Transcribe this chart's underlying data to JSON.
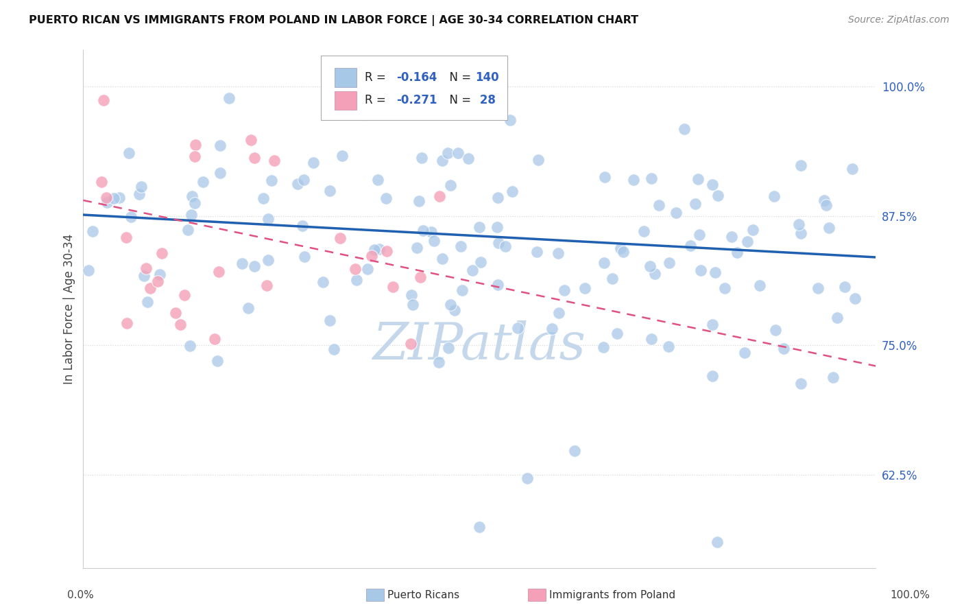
{
  "title": "PUERTO RICAN VS IMMIGRANTS FROM POLAND IN LABOR FORCE | AGE 30-34 CORRELATION CHART",
  "source": "Source: ZipAtlas.com",
  "ylabel": "In Labor Force | Age 30-34",
  "xmin": 0.0,
  "xmax": 1.0,
  "ymin": 0.535,
  "ymax": 1.035,
  "yticks": [
    0.625,
    0.75,
    0.875,
    1.0
  ],
  "ytick_labels": [
    "62.5%",
    "75.0%",
    "87.5%",
    "100.0%"
  ],
  "blue_R": -0.164,
  "blue_N": 140,
  "pink_R": -0.271,
  "pink_N": 28,
  "blue_color": "#a8c8e8",
  "pink_color": "#f4a0b8",
  "blue_line_color": "#2060b0",
  "pink_line_color": "#e05080",
  "tick_color": "#3060c0",
  "legend_label_blue": "Puerto Ricans",
  "legend_label_pink": "Immigrants from Poland",
  "background_color": "#ffffff",
  "watermark_color": "#c5d8eb",
  "grid_color": "#d8d8d8",
  "blue_line_start_y": 0.876,
  "blue_line_end_y": 0.835,
  "pink_line_start_y": 0.89,
  "pink_line_end_y": 0.73
}
